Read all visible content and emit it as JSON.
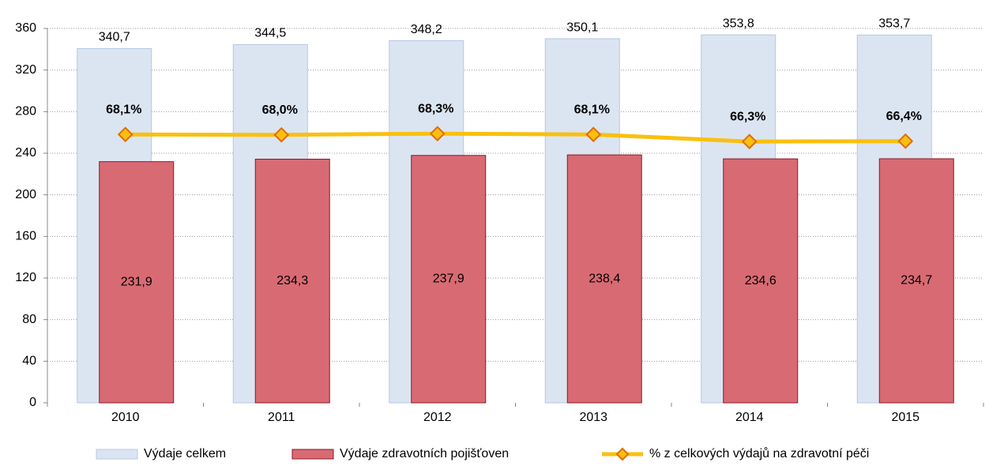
{
  "chart_data": {
    "type": "bar-line",
    "categories": [
      "2010",
      "2011",
      "2012",
      "2013",
      "2014",
      "2015"
    ],
    "series": [
      {
        "name": "Výdaje celkem",
        "type": "bar",
        "color": "#dbe5f1",
        "values": [
          340.7,
          344.5,
          348.2,
          350.1,
          353.8,
          353.7
        ],
        "value_labels": [
          "340,7",
          "344,5",
          "348,2",
          "350,1",
          "353,8",
          "353,7"
        ]
      },
      {
        "name": "Výdaje zdravotních pojišťoven",
        "type": "bar",
        "color": "#d86a73",
        "values": [
          231.9,
          234.3,
          237.9,
          238.4,
          234.6,
          234.7
        ],
        "value_labels": [
          "231,9",
          "234,3",
          "237,9",
          "238,4",
          "234,6",
          "234,7"
        ]
      },
      {
        "name": "% z celkových výdajů na zdravotní péči",
        "type": "line",
        "axis": "y2",
        "color": "#f9c00f",
        "values": [
          68.1,
          68.0,
          68.3,
          68.1,
          66.3,
          66.4
        ],
        "value_labels": [
          "68,1%",
          "68,0%",
          "68,3%",
          "68,1%",
          "66,3%",
          "66,4%"
        ]
      }
    ],
    "ylim": [
      0,
      360
    ],
    "yticks": [
      0,
      40,
      80,
      120,
      160,
      200,
      240,
      280,
      320,
      360
    ],
    "y2lim": [
      0,
      95
    ],
    "grid": true,
    "legend": "bottom"
  }
}
